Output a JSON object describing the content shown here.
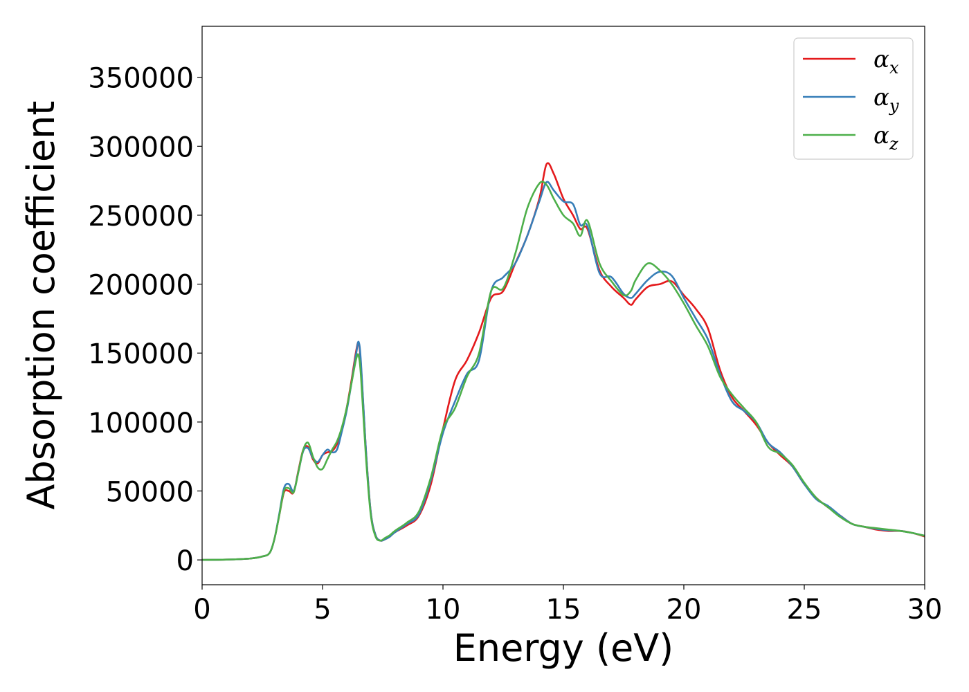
{
  "chart_data": {
    "type": "line",
    "title": "",
    "xlabel": "Energy (eV)",
    "ylabel": "Absorption coefficient",
    "xlim": [
      0,
      30
    ],
    "ylim": [
      -18000,
      387000
    ],
    "xticks": [
      0,
      5,
      10,
      15,
      20,
      25,
      30
    ],
    "xtick_labels": [
      "0",
      "5",
      "10",
      "15",
      "20",
      "25",
      "30"
    ],
    "yticks": [
      0,
      50000,
      100000,
      150000,
      200000,
      250000,
      300000,
      350000
    ],
    "ytick_labels": [
      "0",
      "50000",
      "100000",
      "150000",
      "200000",
      "250000",
      "300000",
      "350000"
    ],
    "grid": false,
    "legend_position": "top-right",
    "series": [
      {
        "name": "α",
        "subscript": "x",
        "color": "#e41a1c",
        "x": [
          0,
          1,
          2,
          2.5,
          2.8,
          3.0,
          3.2,
          3.4,
          3.6,
          3.8,
          4.0,
          4.2,
          4.4,
          4.6,
          4.8,
          5.0,
          5.2,
          5.4,
          5.6,
          5.8,
          6.0,
          6.2,
          6.4,
          6.5,
          6.6,
          6.8,
          7.0,
          7.2,
          7.4,
          7.6,
          7.8,
          8.0,
          8.5,
          9.0,
          9.5,
          10.0,
          10.5,
          11.0,
          11.5,
          12.0,
          12.5,
          13.0,
          13.5,
          14.0,
          14.3,
          14.6,
          15.0,
          15.4,
          15.7,
          16.0,
          16.5,
          17.0,
          17.5,
          17.8,
          18.0,
          18.5,
          19.0,
          19.5,
          20.0,
          20.5,
          21.0,
          21.5,
          22.0,
          22.5,
          23.0,
          23.5,
          24.0,
          24.5,
          25.0,
          25.5,
          26.0,
          26.5,
          27.0,
          27.5,
          28.0,
          28.5,
          29.0,
          29.5,
          30.0
        ],
        "values": [
          0,
          200,
          1000,
          2500,
          5000,
          15000,
          32000,
          49000,
          50000,
          49000,
          65000,
          80000,
          82000,
          73000,
          70000,
          76000,
          78000,
          79000,
          84000,
          95000,
          110000,
          130000,
          152000,
          157000,
          140000,
          80000,
          35000,
          18000,
          14000,
          15000,
          17000,
          20000,
          25000,
          32000,
          55000,
          95000,
          130000,
          145000,
          165000,
          190000,
          195000,
          215000,
          235000,
          262000,
          287000,
          280000,
          262000,
          250000,
          240000,
          240000,
          210000,
          198000,
          190000,
          185000,
          189000,
          198000,
          200000,
          202000,
          192000,
          182000,
          168000,
          138000,
          118000,
          108000,
          98000,
          85000,
          76000,
          68000,
          55000,
          45000,
          38000,
          32000,
          26000,
          24000,
          22000,
          21000,
          21000,
          19500,
          17000
        ]
      },
      {
        "name": "α",
        "subscript": "y",
        "color": "#377eb8",
        "x": [
          0,
          1,
          2,
          2.5,
          2.8,
          3.0,
          3.2,
          3.4,
          3.6,
          3.8,
          4.0,
          4.2,
          4.4,
          4.6,
          4.8,
          5.0,
          5.2,
          5.4,
          5.6,
          5.8,
          6.0,
          6.2,
          6.4,
          6.5,
          6.6,
          6.8,
          7.0,
          7.2,
          7.4,
          7.6,
          7.8,
          8.0,
          8.5,
          9.0,
          9.5,
          10.0,
          10.5,
          11.0,
          11.5,
          12.0,
          12.5,
          13.0,
          13.5,
          14.0,
          14.3,
          14.6,
          15.0,
          15.4,
          15.7,
          16.0,
          16.5,
          17.0,
          17.5,
          17.8,
          18.0,
          18.5,
          19.0,
          19.5,
          20.0,
          20.5,
          21.0,
          21.5,
          22.0,
          22.5,
          23.0,
          23.5,
          24.0,
          24.5,
          25.0,
          25.5,
          26.0,
          26.5,
          27.0,
          27.5,
          28.0,
          28.5,
          29.0,
          29.5,
          30.0
        ],
        "values": [
          0,
          200,
          1000,
          2500,
          5000,
          15000,
          33000,
          52000,
          55000,
          50000,
          64000,
          79000,
          81000,
          74000,
          71000,
          76000,
          80000,
          78000,
          80000,
          93000,
          108000,
          128000,
          150000,
          158000,
          142000,
          80000,
          35000,
          18000,
          14000,
          15000,
          17000,
          20000,
          26000,
          33000,
          58000,
          92000,
          115000,
          135000,
          145000,
          195000,
          205000,
          215000,
          235000,
          260000,
          274000,
          268000,
          260000,
          258000,
          243000,
          242000,
          208000,
          205000,
          193000,
          190000,
          193000,
          203000,
          209000,
          206000,
          190000,
          175000,
          160000,
          135000,
          115000,
          108000,
          100000,
          85000,
          78000,
          68000,
          55000,
          44000,
          39000,
          32000,
          26000,
          24000,
          22500,
          21500,
          21000,
          19500,
          17500
        ]
      },
      {
        "name": "α",
        "subscript": "z",
        "color": "#4daf4a",
        "x": [
          0,
          1,
          2,
          2.5,
          2.8,
          3.0,
          3.2,
          3.4,
          3.6,
          3.8,
          4.0,
          4.2,
          4.4,
          4.6,
          4.8,
          5.0,
          5.2,
          5.4,
          5.6,
          5.8,
          6.0,
          6.2,
          6.4,
          6.5,
          6.6,
          6.8,
          7.0,
          7.2,
          7.4,
          7.6,
          7.8,
          8.0,
          8.5,
          9.0,
          9.5,
          10.0,
          10.5,
          11.0,
          11.5,
          12.0,
          12.5,
          13.0,
          13.5,
          14.0,
          14.3,
          14.6,
          15.0,
          15.4,
          15.7,
          16.0,
          16.5,
          17.0,
          17.5,
          17.8,
          18.0,
          18.5,
          19.0,
          19.5,
          20.0,
          20.5,
          21.0,
          21.5,
          22.0,
          22.5,
          23.0,
          23.5,
          24.0,
          24.5,
          25.0,
          25.5,
          26.0,
          26.5,
          27.0,
          27.5,
          28.0,
          28.5,
          29.0,
          29.5,
          30.0
        ],
        "values": [
          0,
          200,
          1000,
          2500,
          5000,
          15000,
          32000,
          50000,
          52000,
          49000,
          64000,
          80000,
          85000,
          75000,
          67000,
          66000,
          73000,
          80000,
          86000,
          96000,
          110000,
          128000,
          146000,
          148000,
          132000,
          75000,
          33000,
          17000,
          14000,
          16000,
          18000,
          21000,
          27000,
          35000,
          60000,
          95000,
          110000,
          133000,
          150000,
          195000,
          197000,
          222000,
          255000,
          273000,
          272000,
          262000,
          250000,
          244000,
          235000,
          246000,
          215000,
          202000,
          192000,
          195000,
          203000,
          215000,
          210000,
          200000,
          186000,
          170000,
          155000,
          133000,
          120000,
          110000,
          100000,
          82000,
          77000,
          69000,
          56000,
          45000,
          38000,
          31000,
          26000,
          24000,
          23000,
          22000,
          21000,
          19500,
          17500
        ]
      }
    ]
  }
}
